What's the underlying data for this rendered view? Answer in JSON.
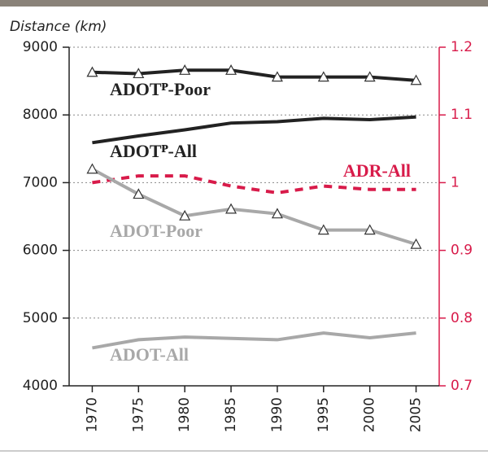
{
  "chart_data": {
    "type": "line",
    "ylabel": "Distance (km)",
    "x": [
      1970,
      1975,
      1980,
      1985,
      1990,
      1995,
      2000,
      2005
    ],
    "xlim": [
      1967.5,
      2007.5
    ],
    "xticks": [
      1970,
      1975,
      1980,
      1985,
      1990,
      1995,
      2000,
      2005
    ],
    "ylim": [
      4000,
      9000
    ],
    "yticks": [
      4000,
      5000,
      6000,
      7000,
      8000,
      9000
    ],
    "y2lim": [
      0.7,
      1.2
    ],
    "y2ticks": [
      0.7,
      0.8,
      0.9,
      1,
      1.1,
      1.2
    ],
    "y2color": "#d81b4a",
    "grid": true,
    "series": [
      {
        "name": "ADOTᴾ-Poor",
        "color": "#222222",
        "markers": true,
        "values": [
          8630,
          8610,
          8660,
          8660,
          8560,
          8560,
          8560,
          8510
        ]
      },
      {
        "name": "ADOTᴾ-All",
        "color": "#222222",
        "markers": false,
        "values": [
          7590,
          7690,
          7780,
          7880,
          7900,
          7950,
          7930,
          7970
        ]
      },
      {
        "name": "ADR-All",
        "color": "#d81b4a",
        "markers": false,
        "dashed": true,
        "axis": "y2",
        "values": [
          1.0,
          1.01,
          1.01,
          0.995,
          0.985,
          0.995,
          0.99,
          0.99
        ]
      },
      {
        "name": "ADOT-Poor",
        "color": "#a8a8a8",
        "markers": true,
        "values": [
          7200,
          6830,
          6510,
          6610,
          6540,
          6300,
          6300,
          6090
        ]
      },
      {
        "name": "ADOT-All",
        "color": "#a8a8a8",
        "markers": false,
        "values": [
          4560,
          4680,
          4720,
          4700,
          4680,
          4780,
          4710,
          4780
        ]
      }
    ]
  }
}
